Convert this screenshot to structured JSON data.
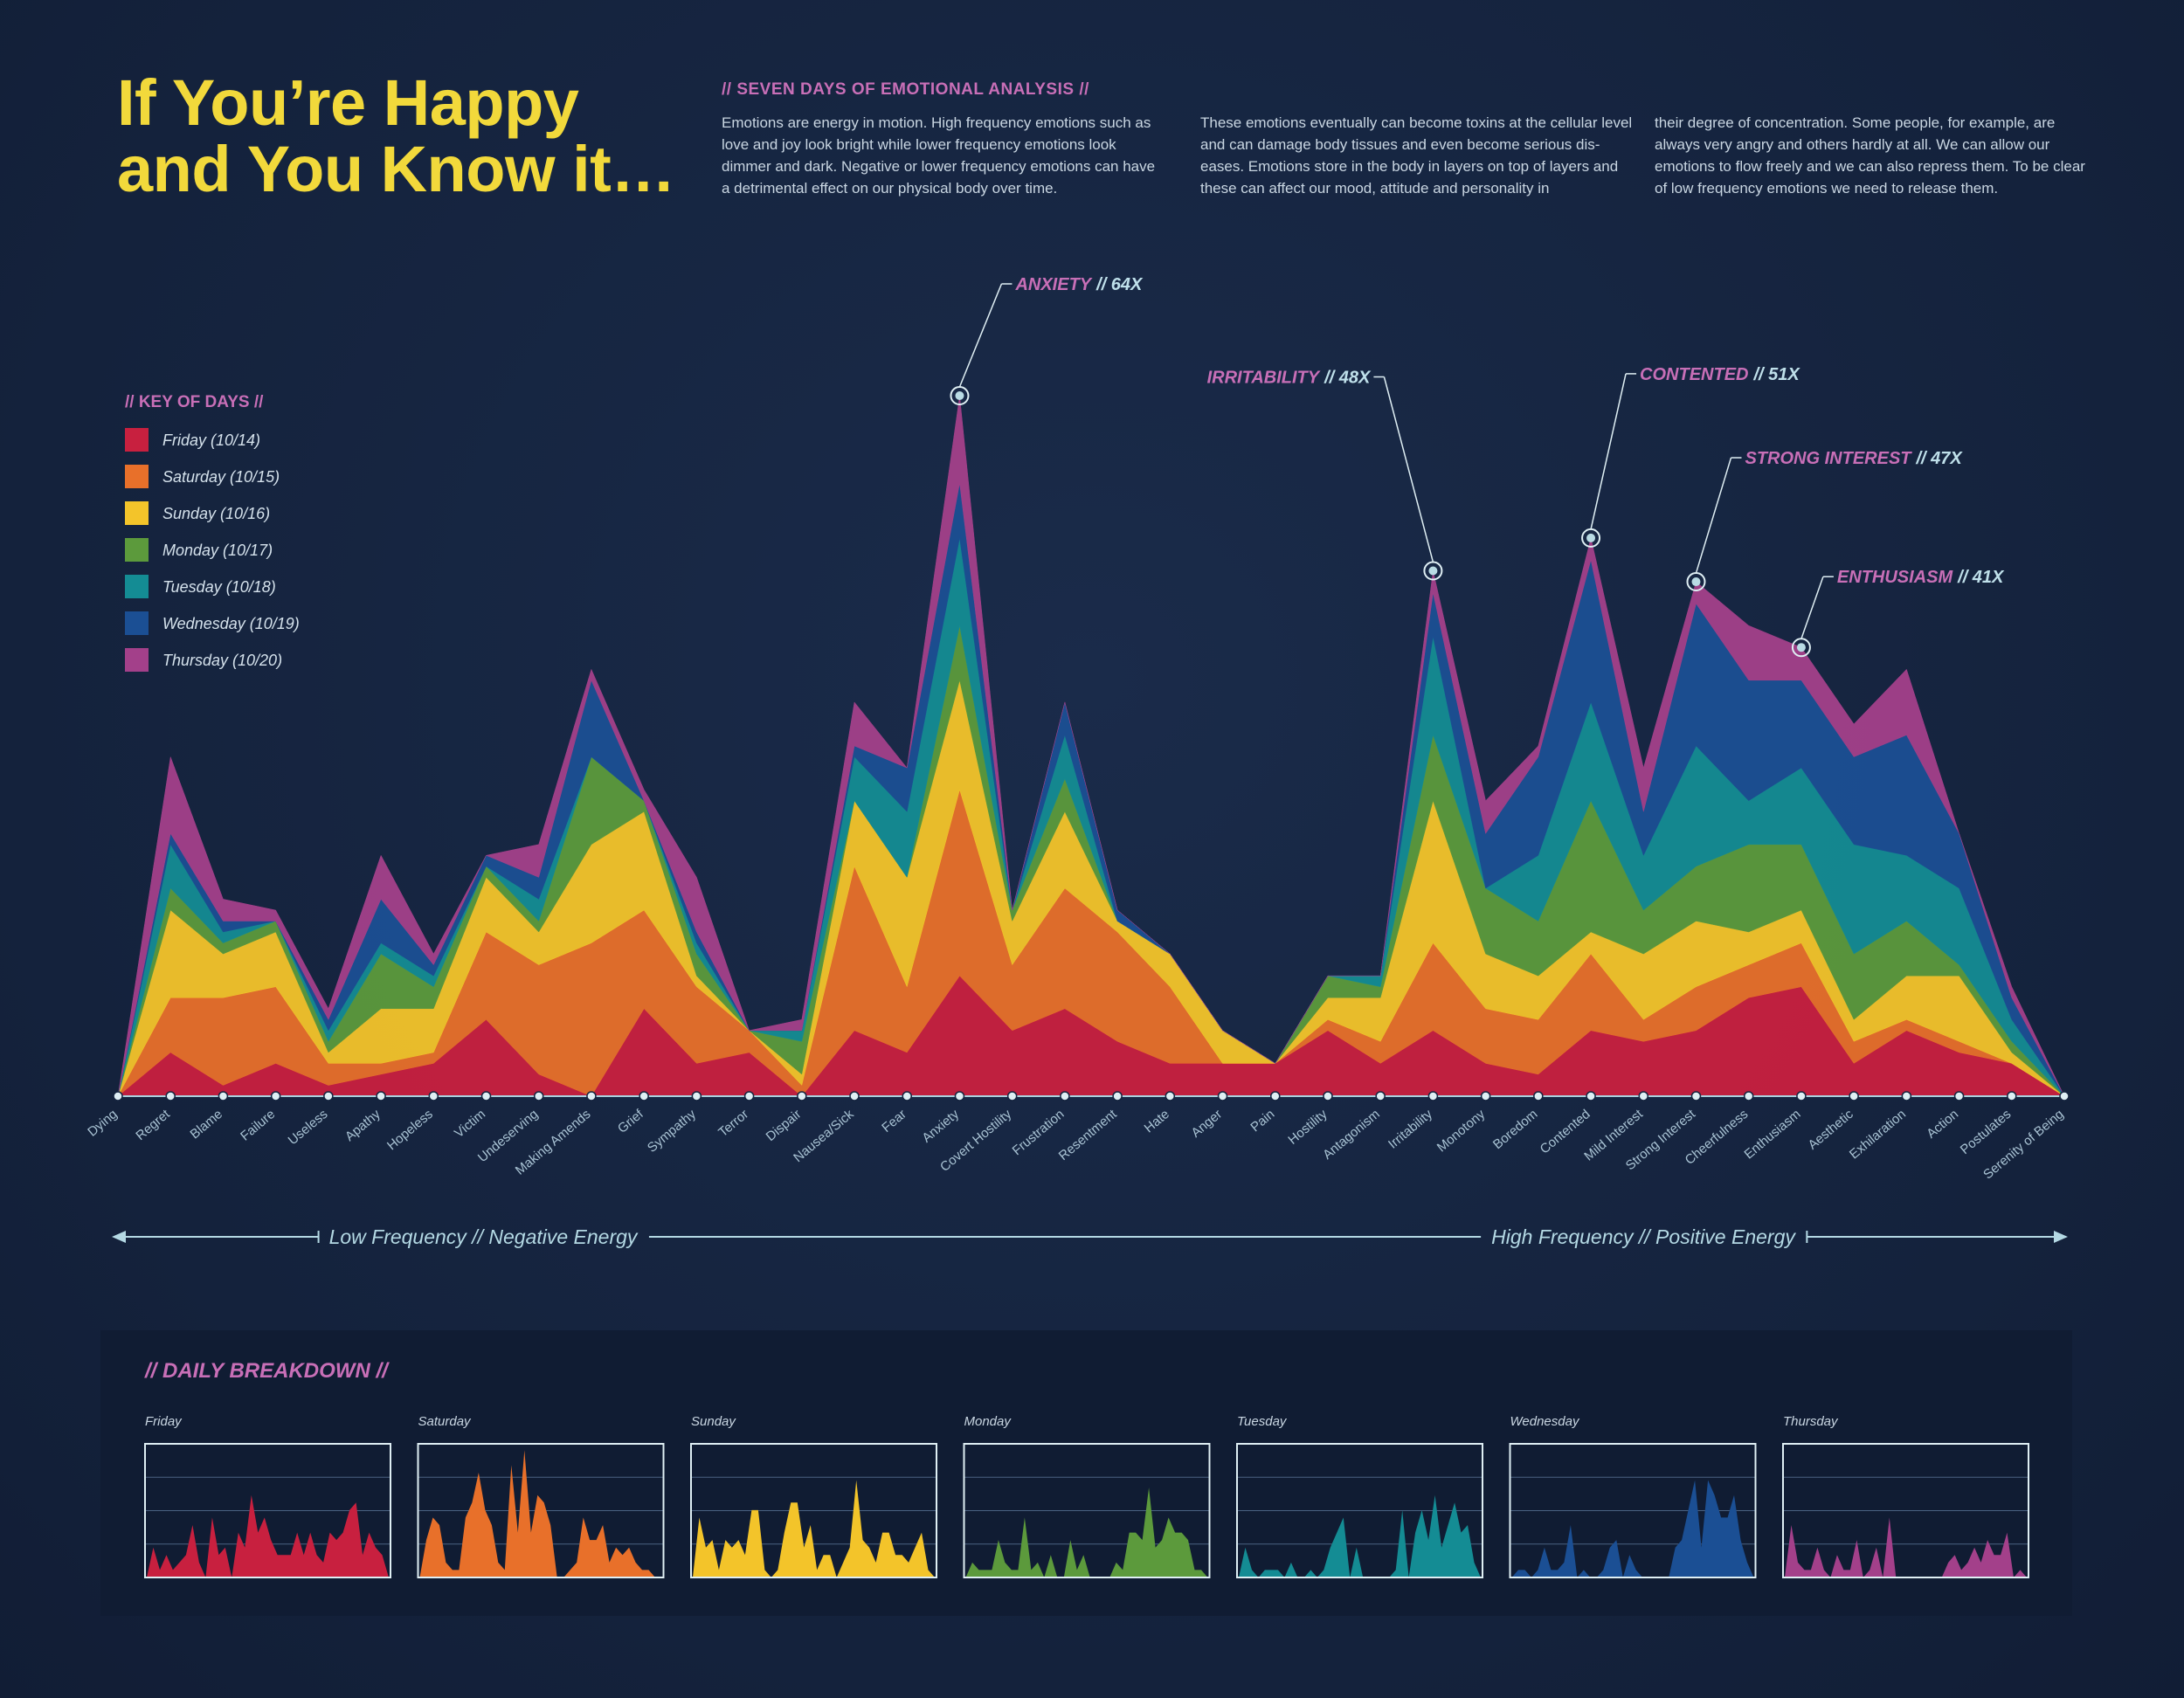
{
  "header": {
    "title": [
      "If You’re Happy",
      "and You Know it…"
    ],
    "heading": "// SEVEN DAYS OF EMOTIONAL ANALYSIS //",
    "paragraphs": [
      "Emotions are energy in motion. High frequency emotions such as love and joy look bright while lower frequency emotions look dimmer and dark. Negative or lower frequency emotions can have a detrimental effect on our physical body over time.",
      "These emotions eventually can become toxins at the cellular level and can damage body tissues and even become serious dis-eases. Emotions store in the body in layers on top of layers and these can affect our mood, attitude and personality in",
      "their degree of concentration.  Some people, for example, are always very angry and others hardly at all. We can allow our emotions to flow freely and we can also repress them.  To be clear of low frequency emotions we need to release them."
    ]
  },
  "chart_data": {
    "type": "stacked-area",
    "legend_title": "// KEY OF DAYS //",
    "categories": [
      "Dying",
      "Regret",
      "Blame",
      "Failure",
      "Useless",
      "Apathy",
      "Hopeless",
      "Victim",
      "Undeserving",
      "Making Amends",
      "Grief",
      "Sympathy",
      "Terror",
      "Dispair",
      "Nausea/Sick",
      "Fear",
      "Anxiety",
      "Covert Hostility",
      "Frustration",
      "Resentment",
      "Hate",
      "Anger",
      "Pain",
      "Hostility",
      "Antagonism",
      "Irritability",
      "Monotony",
      "Boredom",
      "Contented",
      "Mild Interest",
      "Strong Interest",
      "Cheerfulness",
      "Enthusiasm",
      "Aesthetic",
      "Exhilaration",
      "Action",
      "Postulates",
      "Serenity of Being"
    ],
    "series": [
      {
        "name": "Friday (10/14)",
        "color": "#c8203f",
        "values": [
          0,
          4,
          1,
          3,
          1,
          2,
          3,
          7,
          2,
          0,
          8,
          3,
          4,
          0,
          6,
          4,
          11,
          6,
          8,
          5,
          3,
          3,
          3,
          6,
          3,
          6,
          3,
          2,
          6,
          5,
          6,
          9,
          10,
          3,
          6,
          4,
          3,
          0
        ]
      },
      {
        "name": "Saturday (10/15)",
        "color": "#e8702a",
        "values": [
          0,
          5,
          8,
          7,
          2,
          1,
          1,
          8,
          10,
          14,
          9,
          7,
          2,
          1,
          15,
          6,
          17,
          6,
          11,
          10,
          7,
          0,
          0,
          1,
          2,
          8,
          5,
          5,
          7,
          2,
          4,
          3,
          4,
          2,
          1,
          1,
          0,
          0
        ]
      },
      {
        "name": "Sunday (10/16)",
        "color": "#f3c42a",
        "values": [
          0,
          8,
          4,
          5,
          1,
          5,
          4,
          5,
          3,
          9,
          9,
          1,
          0,
          1,
          6,
          10,
          10,
          4,
          7,
          1,
          3,
          3,
          0,
          2,
          4,
          13,
          5,
          4,
          2,
          6,
          6,
          3,
          3,
          2,
          4,
          6,
          1,
          0
        ]
      },
      {
        "name": "Monday (10/17)",
        "color": "#5c9a3c",
        "values": [
          0,
          2,
          1,
          1,
          1,
          5,
          2,
          1,
          1,
          8,
          1,
          2,
          0,
          3,
          0,
          0,
          5,
          1,
          3,
          0,
          0,
          0,
          0,
          2,
          1,
          6,
          6,
          5,
          12,
          4,
          5,
          8,
          6,
          6,
          5,
          1,
          1,
          0
        ]
      },
      {
        "name": "Tuesday (10/18)",
        "color": "#148c94",
        "values": [
          0,
          4,
          1,
          0,
          1,
          1,
          1,
          0,
          2,
          0,
          0,
          1,
          0,
          1,
          4,
          6,
          8,
          0,
          4,
          0,
          0,
          0,
          0,
          0,
          1,
          9,
          0,
          6,
          9,
          5,
          11,
          4,
          7,
          10,
          6,
          7,
          2,
          0
        ]
      },
      {
        "name": "Wednesday (10/19)",
        "color": "#1b4f94",
        "values": [
          0,
          1,
          1,
          0,
          1,
          4,
          1,
          1,
          2,
          7,
          0,
          1,
          0,
          0,
          1,
          4,
          5,
          0,
          3,
          1,
          0,
          0,
          0,
          0,
          0,
          4,
          5,
          9,
          13,
          4,
          13,
          11,
          8,
          8,
          11,
          5,
          2,
          0
        ]
      },
      {
        "name": "Thursday (10/20)",
        "color": "#a3408a",
        "values": [
          0,
          7,
          2,
          1,
          1,
          4,
          1,
          0,
          3,
          1,
          1,
          5,
          0,
          1,
          4,
          0,
          8,
          0,
          0,
          0,
          0,
          0,
          0,
          0,
          0,
          2,
          3,
          1,
          2,
          4,
          2,
          5,
          3,
          3,
          6,
          0,
          1,
          0
        ]
      }
    ],
    "annotations": [
      {
        "label": "ANXIETY",
        "text": "// 64X",
        "category": "Anxiety"
      },
      {
        "label": "IRRITABILITY",
        "text": "// 48X",
        "category": "Irritability"
      },
      {
        "label": "CONTENTED",
        "text": "// 51X",
        "category": "Contented"
      },
      {
        "label": "STRONG INTEREST",
        "text": "// 47X",
        "category": "Strong Interest"
      },
      {
        "label": "ENTHUSIASM",
        "text": "// 41X",
        "category": "Enthusiasm"
      }
    ],
    "axis_labels": [
      "Low Frequency // Negative Energy",
      "High Frequency // Positive Energy"
    ],
    "breakdown": {
      "title": "// DAILY BREAKDOWN //",
      "labels": [
        "Friday",
        "Saturday",
        "Sunday",
        "Monday",
        "Tuesday",
        "Wednesday",
        "Thursday"
      ]
    }
  }
}
